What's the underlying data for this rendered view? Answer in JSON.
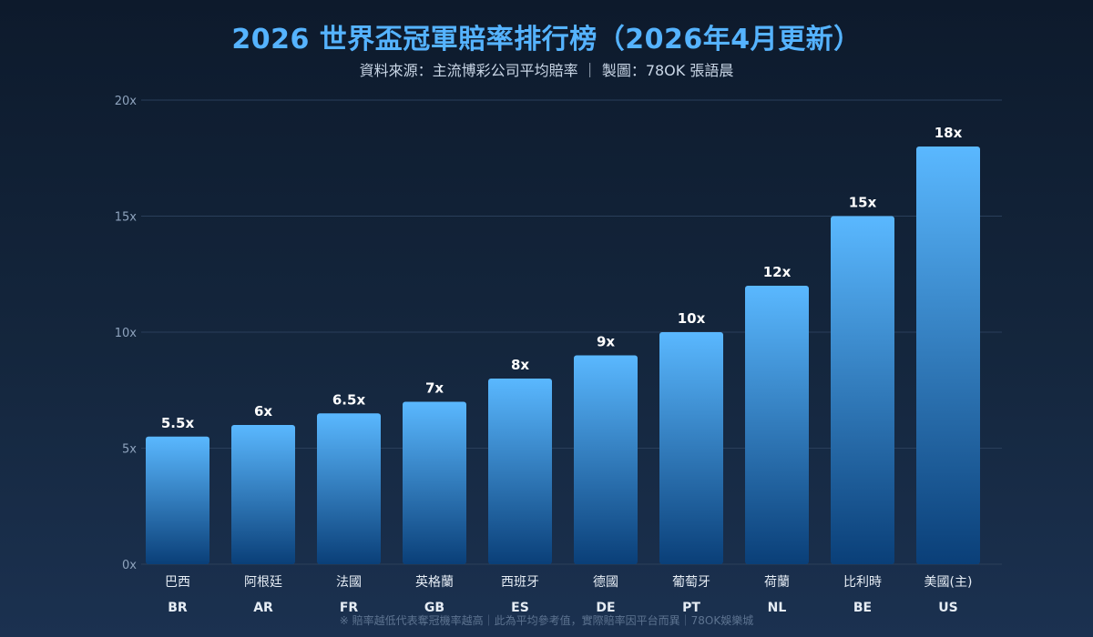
{
  "page": {
    "title": "2026 世界盃冠軍賠率排行榜（2026年4月更新）",
    "subtitle": "資料來源：主流博彩公司平均賠率 ｜ 製圖：78OK 張語晨",
    "footnote": "※ 賠率越低代表奪冠機率越高｜此為平均參考值，實際賠率因平台而異｜78OK娛樂城"
  },
  "colors": {
    "title": "#55b3ff",
    "bar_top": "#5ab8ff",
    "bar_bottom": "#0a3f78",
    "grid": "#2a3f5a",
    "tick_label": "#8ea3bd",
    "value_label": "#ffffff",
    "category_label": "#e6edf5"
  },
  "chart_data": {
    "type": "bar",
    "categories": [
      "巴西",
      "阿根廷",
      "法國",
      "英格蘭",
      "西班牙",
      "德國",
      "葡萄牙",
      "荷蘭",
      "比利時",
      "美國(主)"
    ],
    "codes": [
      "BR",
      "AR",
      "FR",
      "GB",
      "ES",
      "DE",
      "PT",
      "NL",
      "BE",
      "US"
    ],
    "values": [
      5.5,
      6,
      6.5,
      7,
      8,
      9,
      10,
      12,
      15,
      18
    ],
    "value_labels": [
      "5.5x",
      "6x",
      "6.5x",
      "7x",
      "8x",
      "9x",
      "10x",
      "12x",
      "15x",
      "18x"
    ],
    "yticks": [
      0,
      5,
      10,
      15,
      20
    ],
    "ytick_labels": [
      "0x",
      "5x",
      "10x",
      "15x",
      "20x"
    ],
    "ylim": [
      0,
      20
    ],
    "grid": true,
    "legend": false
  }
}
